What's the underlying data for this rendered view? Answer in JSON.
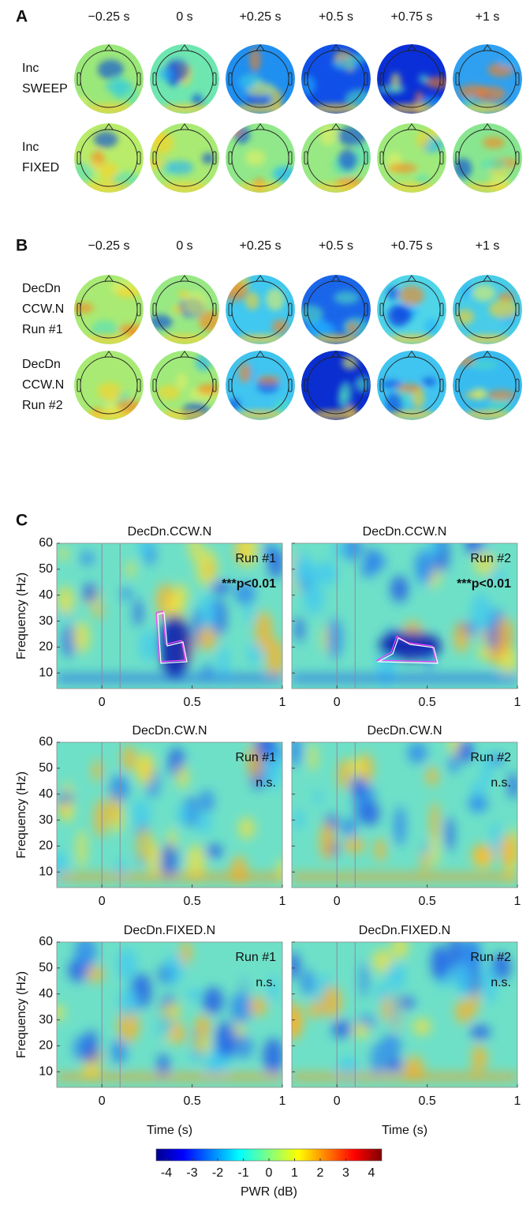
{
  "panels": [
    {
      "label": "A",
      "times": [
        "−0.25 s",
        "0 s",
        "+0.25 s",
        "+0.5 s",
        "+0.75 s",
        "+1 s"
      ],
      "rows": [
        {
          "label": [
            "Inc",
            "SWEEP"
          ]
        },
        {
          "label": [
            "Inc",
            "FIXED"
          ]
        }
      ]
    },
    {
      "label": "B",
      "times": [
        "−0.25 s",
        "0 s",
        "+0.25 s",
        "+0.5 s",
        "+0.75 s",
        "+1 s"
      ],
      "rows": [
        {
          "label": [
            "DecDn",
            "CCW.N",
            "Run #1"
          ]
        },
        {
          "label": [
            "DecDn",
            "CCW.N",
            "Run #2"
          ]
        }
      ]
    }
  ],
  "spectrograms": {
    "label": "C",
    "ylabel": "Frequency (Hz)",
    "xlabel": "Time (s)",
    "xlim": [
      -0.25,
      1
    ],
    "ylim": [
      4,
      60
    ],
    "xticks": [
      0,
      0.5,
      1
    ],
    "yticks": [
      10,
      20,
      30,
      40,
      50,
      60
    ],
    "plots": [
      {
        "title": "DecDn.CCW.N",
        "run": "Run #1",
        "stat": "***p<0.01"
      },
      {
        "title": "DecDn.CCW.N",
        "run": "Run #2",
        "stat": "***p<0.01"
      },
      {
        "title": "DecDn.CW.N",
        "run": "Run #1",
        "stat": "n.s."
      },
      {
        "title": "DecDn.CW.N",
        "run": "Run #2",
        "stat": "n.s."
      },
      {
        "title": "DecDn.FIXED.N",
        "run": "Run #1",
        "stat": "n.s."
      },
      {
        "title": "DecDn.FIXED.N",
        "run": "Run #2",
        "stat": "n.s."
      }
    ]
  },
  "colorbar": {
    "clim": [
      -4.4,
      4.4
    ],
    "ticks": [
      -4,
      -3,
      -2,
      -1,
      0,
      1,
      2,
      3,
      4
    ],
    "label": "PWR (dB)"
  }
}
